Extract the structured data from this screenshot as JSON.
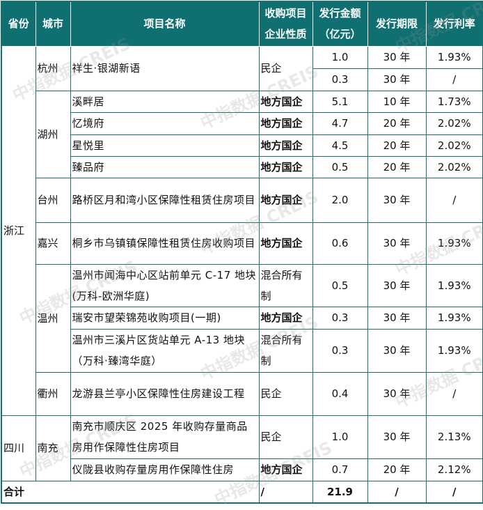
{
  "header": {
    "province": "省份",
    "city": "城市",
    "project": "项目名称",
    "nature": "收购项目企业性质",
    "amount": "发行金额（亿元）",
    "term": "发行期限",
    "rate": "发行利率"
  },
  "provinces": [
    "浙江",
    "四川"
  ],
  "cities": [
    "杭州",
    "湖州",
    "台州",
    "嘉兴",
    "温州",
    "衢州",
    "南充"
  ],
  "rows": [
    {
      "project": "祥生·银湖新语",
      "nature": "民企",
      "amount": "1.0",
      "term": "30 年",
      "rate": "1.93%"
    },
    {
      "amount": "0.3",
      "term": "30 年",
      "rate": "/"
    },
    {
      "project": "溪畔居",
      "nature": "地方国企",
      "amount": "5.1",
      "term": "10 年",
      "rate": "1.73%"
    },
    {
      "project": "忆境府",
      "nature": "地方国企",
      "amount": "4.7",
      "term": "20 年",
      "rate": "2.02%"
    },
    {
      "project": "星悦里",
      "nature": "地方国企",
      "amount": "4.5",
      "term": "20 年",
      "rate": "2.02%"
    },
    {
      "project": "臻品府",
      "nature": "地方国企",
      "amount": "0.5",
      "term": "20 年",
      "rate": "2.02%"
    },
    {
      "project": "路桥区月和湾小区保障性租赁住房项目",
      "nature": "地方国企",
      "amount": "2.0",
      "term": "30 年",
      "rate": "/"
    },
    {
      "project": "桐乡市乌镇镇保障性租赁住房收购项目",
      "nature": "地方国企",
      "amount": "0.6",
      "term": "30 年",
      "rate": "1.93%"
    },
    {
      "project": "温州市闻海中心区站前单元 C-17 地块(万科-欧洲华庭)",
      "nature": "混合所有制",
      "amount": "0.5",
      "term": "30 年",
      "rate": "1.93%"
    },
    {
      "project": "瑞安市望荣锦苑收购项目(一期)",
      "nature": "地方国企",
      "amount": "0.3",
      "term": "30 年",
      "rate": "1.93%"
    },
    {
      "project": "温州市三溪片区货站单元 A-13 地块（万科·臻湾华庭）",
      "nature": "混合所有制",
      "amount": "0.3",
      "term": "30 年",
      "rate": "1.93%"
    },
    {
      "project": "龙游县兰亭小区保障性住房建设工程",
      "nature": "民企",
      "amount": "0.4",
      "term": "30 年",
      "rate": "/"
    },
    {
      "project": "南充市顺庆区 2025 年收购存量商品房用作保障性住房项目",
      "nature": "民企",
      "amount": "1.0",
      "term": "30 年",
      "rate": "2.13%"
    },
    {
      "project": "仪陇县收购存量房用作保障性住房",
      "nature": "地方国企",
      "amount": "0.7",
      "term": "20 年",
      "rate": "2.12%"
    }
  ],
  "total": {
    "label": "合计",
    "nature": "/",
    "amount": "21.9",
    "term": "/",
    "rate": "/"
  },
  "watermark": "中指数据 CREIS",
  "colors": {
    "header_bg": "#0f6f71",
    "border": "#1d6f6e"
  }
}
